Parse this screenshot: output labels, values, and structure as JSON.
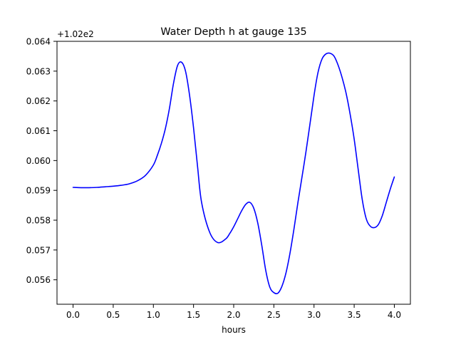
{
  "chart_data": {
    "type": "line",
    "title": "Water Depth h at gauge 135",
    "xlabel": "hours",
    "ylabel": "",
    "y_offset_label": "+1.02e2",
    "y_offset": 102,
    "xlim": [
      -0.2,
      4.2
    ],
    "ylim": [
      0.05518,
      0.064
    ],
    "x_ticks": [
      0.0,
      0.5,
      1.0,
      1.5,
      2.0,
      2.5,
      3.0,
      3.5,
      4.0
    ],
    "x_tick_labels": [
      "0.0",
      "0.5",
      "1.0",
      "1.5",
      "2.0",
      "2.5",
      "3.0",
      "3.5",
      "4.0"
    ],
    "y_ticks": [
      0.056,
      0.057,
      0.058,
      0.059,
      0.06,
      0.061,
      0.062,
      0.063,
      0.064
    ],
    "y_tick_labels": [
      "0.056",
      "0.057",
      "0.058",
      "0.059",
      "0.060",
      "0.061",
      "0.062",
      "0.063",
      "0.064"
    ],
    "grid": false,
    "series": [
      {
        "color": "#0000ff",
        "x": [
          0.0,
          0.1,
          0.2,
          0.3,
          0.4,
          0.5,
          0.6,
          0.7,
          0.8,
          0.9,
          1.0,
          1.05,
          1.1,
          1.15,
          1.2,
          1.25,
          1.3,
          1.35,
          1.4,
          1.45,
          1.5,
          1.55,
          1.6,
          1.7,
          1.8,
          1.9,
          1.95,
          2.0,
          2.05,
          2.1,
          2.15,
          2.2,
          2.25,
          2.3,
          2.35,
          2.4,
          2.45,
          2.5,
          2.55,
          2.6,
          2.65,
          2.7,
          2.75,
          2.8,
          2.9,
          3.0,
          3.05,
          3.1,
          3.15,
          3.2,
          3.25,
          3.3,
          3.35,
          3.4,
          3.45,
          3.5,
          3.55,
          3.6,
          3.65,
          3.7,
          3.75,
          3.8,
          3.85,
          3.9,
          3.95,
          4.0
        ],
        "y": [
          0.0591,
          0.05909,
          0.05909,
          0.0591,
          0.05912,
          0.05914,
          0.05917,
          0.05922,
          0.05932,
          0.0595,
          0.05985,
          0.06018,
          0.06058,
          0.06108,
          0.06175,
          0.06258,
          0.06318,
          0.0633,
          0.063,
          0.0622,
          0.0611,
          0.0598,
          0.0586,
          0.0576,
          0.05725,
          0.05737,
          0.05755,
          0.05778,
          0.05805,
          0.05832,
          0.05853,
          0.0586,
          0.0584,
          0.0579,
          0.05715,
          0.0563,
          0.05575,
          0.05557,
          0.05555,
          0.05578,
          0.05622,
          0.05688,
          0.0577,
          0.0586,
          0.0603,
          0.06218,
          0.06296,
          0.06341,
          0.06358,
          0.0636,
          0.0635,
          0.0632,
          0.06278,
          0.06225,
          0.06155,
          0.06072,
          0.0597,
          0.0587,
          0.05805,
          0.0578,
          0.05775,
          0.05785,
          0.05815,
          0.0586,
          0.05905,
          0.05945
        ]
      }
    ]
  }
}
